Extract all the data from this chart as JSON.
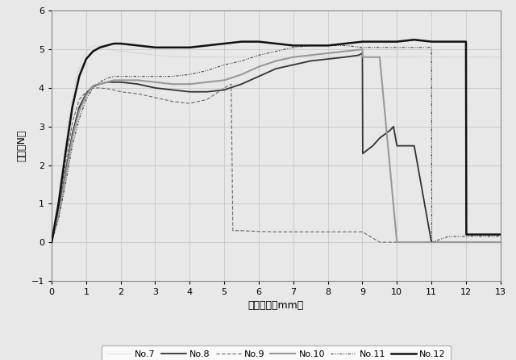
{
  "xlabel": "引張距離（mm）",
  "ylabel": "荷重（N）",
  "xlim": [
    0,
    13
  ],
  "ylim": [
    -1,
    6
  ],
  "xticks": [
    0,
    1,
    2,
    3,
    4,
    5,
    6,
    7,
    8,
    9,
    10,
    11,
    12,
    13
  ],
  "yticks": [
    -1,
    0,
    1,
    2,
    3,
    4,
    5,
    6
  ],
  "series": [
    {
      "label": "No.7",
      "color": "#bbbbbb",
      "linewidth": 0.7,
      "linestyle_key": "dotted_fine",
      "x": [
        0,
        0.15,
        0.3,
        0.5,
        0.7,
        0.9,
        1.1,
        1.3,
        1.5,
        1.7,
        1.9,
        2.1,
        2.5,
        3.0,
        3.5,
        4.0,
        4.5,
        5.0,
        5.3,
        5.5,
        13.0
      ],
      "y": [
        0,
        0.8,
        1.8,
        3.2,
        4.2,
        4.8,
        5.05,
        5.1,
        5.1,
        5.0,
        4.95,
        4.95,
        4.9,
        4.85,
        4.82,
        4.8,
        4.8,
        4.8,
        4.8,
        4.8,
        4.8
      ]
    },
    {
      "label": "No.8",
      "color": "#333333",
      "linewidth": 1.3,
      "linestyle_key": "solid",
      "x": [
        0,
        0.2,
        0.4,
        0.6,
        0.8,
        1.0,
        1.2,
        1.4,
        1.6,
        1.8,
        2.0,
        2.5,
        3.0,
        3.5,
        4.0,
        4.5,
        5.0,
        5.5,
        6.0,
        6.5,
        7.0,
        7.5,
        8.0,
        8.5,
        8.9,
        8.95,
        9.0,
        9.01,
        9.3,
        9.5,
        9.8,
        9.9,
        10.0,
        10.05,
        10.4,
        10.5,
        11.0,
        11.5,
        12.0,
        12.5,
        13.0
      ],
      "y": [
        0,
        0.8,
        1.8,
        2.8,
        3.5,
        3.85,
        4.05,
        4.1,
        4.15,
        4.15,
        4.15,
        4.1,
        4.0,
        3.95,
        3.9,
        3.9,
        3.95,
        4.1,
        4.3,
        4.5,
        4.6,
        4.7,
        4.75,
        4.8,
        4.85,
        4.88,
        4.9,
        2.3,
        2.5,
        2.7,
        2.9,
        3.0,
        2.5,
        2.5,
        2.5,
        2.5,
        0.0,
        0.0,
        0.0,
        0.0,
        0.0
      ]
    },
    {
      "label": "No.9",
      "color": "#666666",
      "linewidth": 0.8,
      "linestyle_key": "dashed_medium",
      "x": [
        0,
        0.2,
        0.4,
        0.6,
        0.8,
        1.0,
        1.2,
        1.4,
        1.6,
        1.8,
        2.0,
        2.5,
        3.0,
        3.5,
        4.0,
        4.5,
        5.0,
        5.2,
        5.25,
        5.5,
        6.0,
        6.5,
        7.0,
        7.5,
        8.0,
        8.5,
        9.0,
        9.5,
        10.0,
        10.5,
        11.0,
        11.5,
        12.0,
        12.5,
        13.0
      ],
      "y": [
        0,
        0.9,
        2.0,
        3.1,
        3.7,
        3.9,
        4.0,
        4.0,
        3.98,
        3.95,
        3.9,
        3.85,
        3.75,
        3.65,
        3.6,
        3.7,
        4.0,
        4.1,
        0.3,
        0.3,
        0.28,
        0.27,
        0.27,
        0.27,
        0.27,
        0.27,
        0.27,
        0.0,
        0.0,
        0.0,
        0.0,
        0.0,
        0.0,
        0.0,
        0.0
      ]
    },
    {
      "label": "No.10",
      "color": "#999999",
      "linewidth": 1.5,
      "linestyle_key": "solid",
      "x": [
        0,
        0.2,
        0.4,
        0.6,
        0.8,
        1.0,
        1.2,
        1.4,
        1.6,
        1.8,
        2.0,
        2.5,
        3.0,
        3.5,
        4.0,
        4.5,
        5.0,
        5.5,
        6.0,
        6.5,
        7.0,
        7.5,
        8.0,
        8.5,
        9.0,
        9.01,
        9.5,
        10.0,
        10.5,
        11.0,
        11.5,
        12.0,
        12.5,
        13.0
      ],
      "y": [
        0,
        0.7,
        1.7,
        2.7,
        3.4,
        3.8,
        4.05,
        4.1,
        4.15,
        4.2,
        4.2,
        4.2,
        4.15,
        4.1,
        4.1,
        4.15,
        4.2,
        4.35,
        4.55,
        4.7,
        4.8,
        4.85,
        4.9,
        4.95,
        5.0,
        4.8,
        4.8,
        0.0,
        0.0,
        0.0,
        0.0,
        0.0,
        0.0,
        0.0
      ]
    },
    {
      "label": "No.11",
      "color": "#444444",
      "linewidth": 0.8,
      "linestyle_key": "dash_dot_dot",
      "x": [
        0,
        0.2,
        0.4,
        0.6,
        0.8,
        1.0,
        1.2,
        1.4,
        1.6,
        1.8,
        2.0,
        2.5,
        3.0,
        3.5,
        4.0,
        4.5,
        5.0,
        5.5,
        6.0,
        6.5,
        7.0,
        7.5,
        8.0,
        8.5,
        9.0,
        9.5,
        10.0,
        10.5,
        11.0,
        11.01,
        11.5,
        12.0,
        12.01,
        12.5,
        13.0
      ],
      "y": [
        0,
        0.6,
        1.5,
        2.5,
        3.2,
        3.7,
        4.0,
        4.15,
        4.25,
        4.3,
        4.3,
        4.3,
        4.3,
        4.3,
        4.35,
        4.45,
        4.6,
        4.7,
        4.85,
        4.95,
        5.05,
        5.1,
        5.1,
        5.1,
        5.05,
        5.05,
        5.05,
        5.05,
        5.05,
        0.0,
        0.15,
        0.15,
        0.15,
        0.15,
        0.15
      ]
    },
    {
      "label": "No.12",
      "color": "#111111",
      "linewidth": 1.8,
      "linestyle_key": "solid",
      "x": [
        0,
        0.2,
        0.4,
        0.6,
        0.8,
        1.0,
        1.2,
        1.4,
        1.6,
        1.8,
        2.0,
        2.5,
        3.0,
        3.5,
        4.0,
        4.5,
        5.0,
        5.5,
        6.0,
        6.5,
        7.0,
        7.5,
        8.0,
        8.5,
        9.0,
        9.5,
        10.0,
        10.5,
        11.0,
        11.5,
        12.0,
        12.01,
        12.5,
        13.0
      ],
      "y": [
        0,
        1.0,
        2.3,
        3.5,
        4.3,
        4.75,
        4.95,
        5.05,
        5.1,
        5.15,
        5.15,
        5.1,
        5.05,
        5.05,
        5.05,
        5.1,
        5.15,
        5.2,
        5.2,
        5.15,
        5.1,
        5.1,
        5.1,
        5.15,
        5.2,
        5.2,
        5.2,
        5.25,
        5.2,
        5.2,
        5.2,
        0.2,
        0.2,
        0.2
      ]
    }
  ],
  "legend": [
    {
      "label": "No.7",
      "color": "#bbbbbb",
      "lw": 0.7,
      "ls_key": "dotted_fine"
    },
    {
      "label": "No.8",
      "color": "#333333",
      "lw": 1.3,
      "ls_key": "solid"
    },
    {
      "label": "No.9",
      "color": "#666666",
      "lw": 0.8,
      "ls_key": "dashed_medium"
    },
    {
      "label": "No.10",
      "color": "#999999",
      "lw": 1.5,
      "ls_key": "solid"
    },
    {
      "label": "No.11",
      "color": "#444444",
      "lw": 0.8,
      "ls_key": "dash_dot_dot"
    },
    {
      "label": "No.12",
      "color": "#111111",
      "lw": 1.8,
      "ls_key": "solid"
    }
  ]
}
